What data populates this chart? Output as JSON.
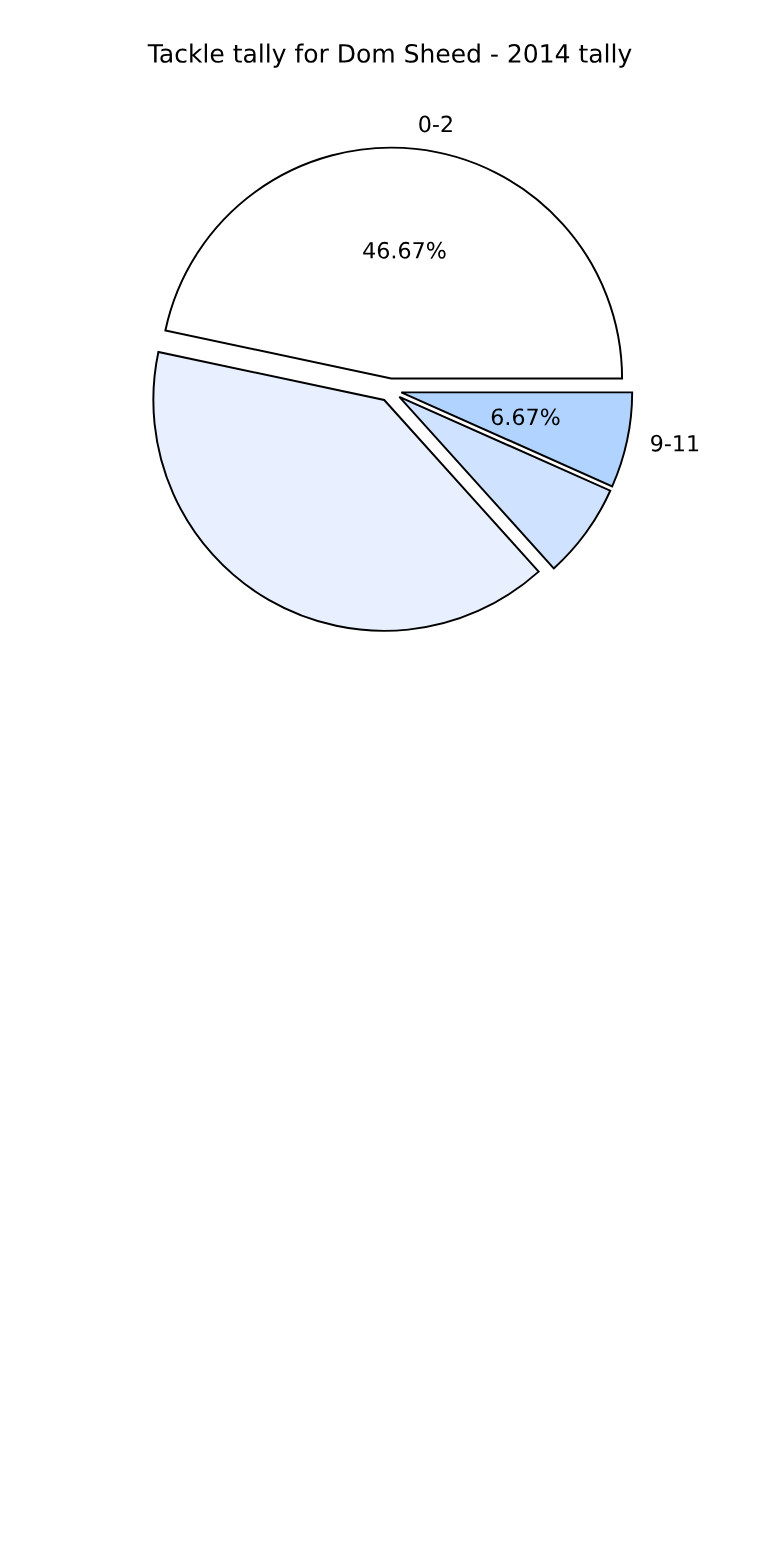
{
  "chart_data": {
    "type": "pie",
    "title": "Tackle tally for Dom Sheed - 2014 tally",
    "categories": [
      "0-2",
      null,
      null,
      "9-11"
    ],
    "values": [
      46.67,
      40,
      6.67,
      6.67
    ],
    "colors": [
      "#ffffff",
      "#e8f0ff",
      "#cfe2ff",
      "#b0d4ff"
    ],
    "value_labels": [
      "46.67%",
      null,
      null,
      "6.67%"
    ]
  }
}
